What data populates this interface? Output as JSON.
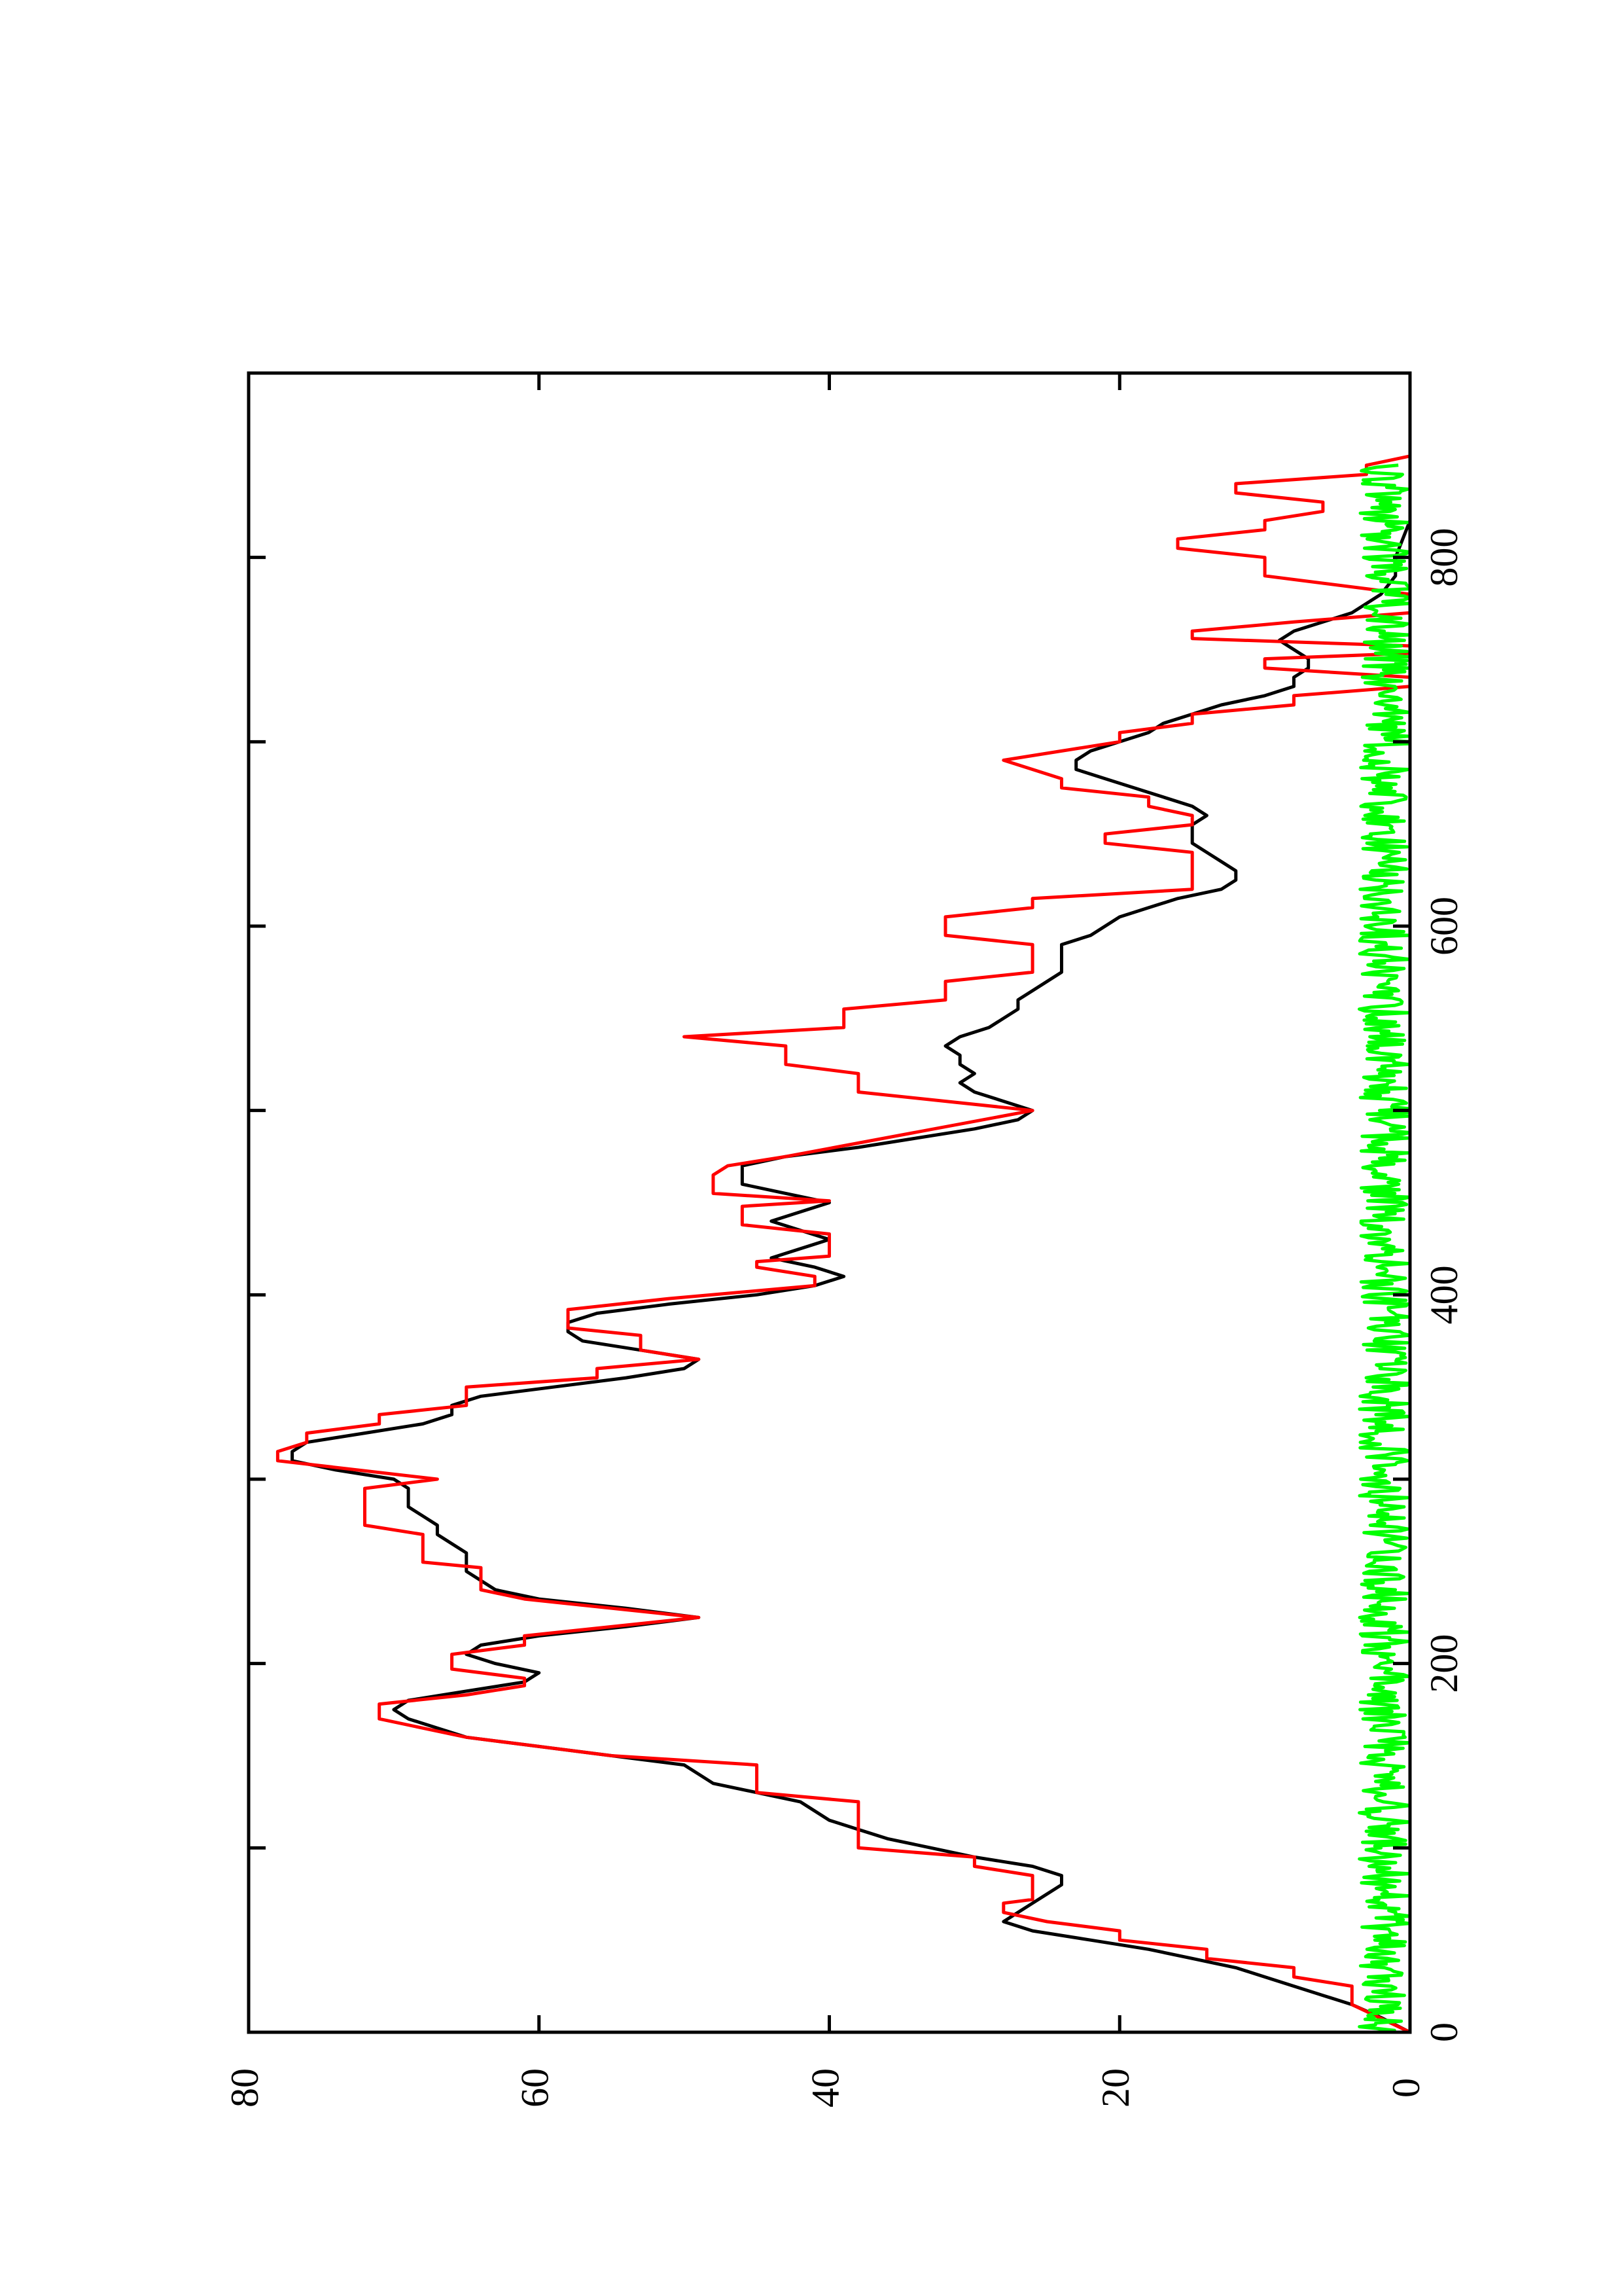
{
  "chart_data": {
    "type": "line",
    "orientation": "rotated-90-ccw",
    "title": "",
    "xlabel": "",
    "ylabel": "",
    "xlim": [
      0,
      900
    ],
    "ylim": [
      0,
      80
    ],
    "x_ticks": [
      0,
      200,
      400,
      600,
      800
    ],
    "x_tick_labels": [
      "0",
      "200",
      "400",
      "600",
      "800"
    ],
    "x_minor_ticks": [
      100,
      300,
      500,
      700
    ],
    "y_ticks": [
      0,
      20,
      40,
      60,
      80
    ],
    "y_tick_labels": [
      "0",
      "20",
      "40",
      "60",
      "80"
    ],
    "grid": false,
    "legend": "none",
    "colors": {
      "black_series": "#000000",
      "red_series": "#ff0000",
      "green_series": "#00ff00"
    },
    "series": [
      {
        "color": "#000000",
        "points": [
          [
            0,
            0
          ],
          [
            8,
            2
          ],
          [
            15,
            4
          ],
          [
            20,
            6
          ],
          [
            25,
            8
          ],
          [
            30,
            10
          ],
          [
            35,
            12
          ],
          [
            40,
            15
          ],
          [
            45,
            18
          ],
          [
            50,
            22
          ],
          [
            55,
            26
          ],
          [
            60,
            28
          ],
          [
            65,
            27
          ],
          [
            70,
            26
          ],
          [
            75,
            25
          ],
          [
            80,
            24
          ],
          [
            85,
            24
          ],
          [
            90,
            26
          ],
          [
            95,
            30
          ],
          [
            100,
            33
          ],
          [
            105,
            36
          ],
          [
            110,
            38
          ],
          [
            115,
            40
          ],
          [
            120,
            41
          ],
          [
            125,
            42
          ],
          [
            130,
            45
          ],
          [
            135,
            48
          ],
          [
            140,
            49
          ],
          [
            145,
            50
          ],
          [
            150,
            55
          ],
          [
            155,
            60
          ],
          [
            160,
            65
          ],
          [
            165,
            67
          ],
          [
            170,
            69
          ],
          [
            175,
            70
          ],
          [
            180,
            69
          ],
          [
            185,
            65
          ],
          [
            190,
            61
          ],
          [
            195,
            60
          ],
          [
            200,
            63
          ],
          [
            205,
            65
          ],
          [
            210,
            64
          ],
          [
            215,
            60
          ],
          [
            220,
            54
          ],
          [
            225,
            49
          ],
          [
            230,
            54
          ],
          [
            235,
            60
          ],
          [
            240,
            63
          ],
          [
            245,
            64
          ],
          [
            250,
            65
          ],
          [
            255,
            65
          ],
          [
            260,
            65
          ],
          [
            265,
            66
          ],
          [
            270,
            67
          ],
          [
            275,
            67
          ],
          [
            280,
            68
          ],
          [
            285,
            69
          ],
          [
            290,
            69
          ],
          [
            295,
            69
          ],
          [
            300,
            70
          ],
          [
            305,
            74
          ],
          [
            310,
            77
          ],
          [
            315,
            77
          ],
          [
            320,
            76
          ],
          [
            325,
            72
          ],
          [
            330,
            68
          ],
          [
            335,
            66
          ],
          [
            340,
            66
          ],
          [
            345,
            64
          ],
          [
            350,
            59
          ],
          [
            355,
            54
          ],
          [
            360,
            50
          ],
          [
            365,
            49
          ],
          [
            370,
            53
          ],
          [
            375,
            57
          ],
          [
            380,
            58
          ],
          [
            385,
            58
          ],
          [
            390,
            56
          ],
          [
            395,
            51
          ],
          [
            400,
            45
          ],
          [
            405,
            41
          ],
          [
            410,
            39
          ],
          [
            415,
            41
          ],
          [
            420,
            44
          ],
          [
            425,
            42
          ],
          [
            430,
            40
          ],
          [
            435,
            42
          ],
          [
            440,
            44
          ],
          [
            445,
            42
          ],
          [
            450,
            40
          ],
          [
            455,
            43
          ],
          [
            460,
            46
          ],
          [
            465,
            46
          ],
          [
            470,
            46
          ],
          [
            475,
            43
          ],
          [
            480,
            38
          ],
          [
            485,
            34
          ],
          [
            490,
            30
          ],
          [
            495,
            27
          ],
          [
            500,
            26
          ],
          [
            505,
            28
          ],
          [
            510,
            30
          ],
          [
            515,
            31
          ],
          [
            520,
            30
          ],
          [
            525,
            31
          ],
          [
            530,
            31
          ],
          [
            535,
            32
          ],
          [
            540,
            31
          ],
          [
            545,
            29
          ],
          [
            550,
            28
          ],
          [
            555,
            27
          ],
          [
            560,
            27
          ],
          [
            565,
            26
          ],
          [
            570,
            25
          ],
          [
            575,
            24
          ],
          [
            580,
            24
          ],
          [
            585,
            24
          ],
          [
            590,
            24
          ],
          [
            595,
            22
          ],
          [
            600,
            21
          ],
          [
            605,
            20
          ],
          [
            610,
            18
          ],
          [
            615,
            16
          ],
          [
            620,
            13
          ],
          [
            625,
            12
          ],
          [
            630,
            12
          ],
          [
            635,
            13
          ],
          [
            640,
            14
          ],
          [
            645,
            15
          ],
          [
            650,
            15
          ],
          [
            655,
            15
          ],
          [
            660,
            14
          ],
          [
            665,
            15
          ],
          [
            670,
            17
          ],
          [
            675,
            19
          ],
          [
            680,
            21
          ],
          [
            685,
            23
          ],
          [
            690,
            23
          ],
          [
            695,
            22
          ],
          [
            700,
            20
          ],
          [
            705,
            18
          ],
          [
            710,
            17
          ],
          [
            715,
            15
          ],
          [
            720,
            13
          ],
          [
            725,
            10
          ],
          [
            730,
            8
          ],
          [
            735,
            8
          ],
          [
            740,
            7
          ],
          [
            745,
            7
          ],
          [
            750,
            8
          ],
          [
            755,
            9
          ],
          [
            760,
            8
          ],
          [
            765,
            6
          ],
          [
            770,
            4
          ],
          [
            775,
            3
          ],
          [
            780,
            2
          ],
          [
            790,
            1
          ],
          [
            800,
            1
          ],
          [
            820,
            0
          ],
          [
            850,
            0
          ]
        ]
      },
      {
        "color": "#ff0000",
        "points": [
          [
            0,
            0
          ],
          [
            15,
            4
          ],
          [
            25,
            4
          ],
          [
            30,
            8
          ],
          [
            35,
            8
          ],
          [
            40,
            14
          ],
          [
            45,
            14
          ],
          [
            50,
            20
          ],
          [
            55,
            20
          ],
          [
            60,
            25
          ],
          [
            65,
            28
          ],
          [
            70,
            28
          ],
          [
            72,
            26
          ],
          [
            85,
            26
          ],
          [
            90,
            30
          ],
          [
            95,
            30
          ],
          [
            100,
            38
          ],
          [
            125,
            38
          ],
          [
            130,
            45
          ],
          [
            145,
            45
          ],
          [
            150,
            55
          ],
          [
            155,
            60
          ],
          [
            160,
            65
          ],
          [
            165,
            68
          ],
          [
            170,
            71
          ],
          [
            178,
            71
          ],
          [
            183,
            65
          ],
          [
            188,
            61
          ],
          [
            192,
            61
          ],
          [
            197,
            66
          ],
          [
            205,
            66
          ],
          [
            210,
            61
          ],
          [
            215,
            61
          ],
          [
            225,
            49
          ],
          [
            235,
            61
          ],
          [
            240,
            64
          ],
          [
            252,
            64
          ],
          [
            255,
            68
          ],
          [
            270,
            68
          ],
          [
            275,
            72
          ],
          [
            295,
            72
          ],
          [
            300,
            67
          ],
          [
            310,
            78
          ],
          [
            315,
            78
          ],
          [
            320,
            76
          ],
          [
            325,
            76
          ],
          [
            330,
            71
          ],
          [
            335,
            71
          ],
          [
            340,
            65
          ],
          [
            350,
            65
          ],
          [
            355,
            56
          ],
          [
            360,
            56
          ],
          [
            365,
            49
          ],
          [
            370,
            53
          ],
          [
            378,
            53
          ],
          [
            382,
            58
          ],
          [
            392,
            58
          ],
          [
            398,
            51
          ],
          [
            405,
            41
          ],
          [
            410,
            41
          ],
          [
            415,
            45
          ],
          [
            418,
            45
          ],
          [
            421,
            40
          ],
          [
            433,
            40
          ],
          [
            438,
            46
          ],
          [
            448,
            46
          ],
          [
            451,
            40
          ],
          [
            455,
            48
          ],
          [
            460,
            48
          ],
          [
            465,
            48
          ],
          [
            470,
            47
          ],
          [
            475,
            43
          ],
          [
            500,
            26
          ],
          [
            510,
            38
          ],
          [
            520,
            38
          ],
          [
            525,
            43
          ],
          [
            535,
            43
          ],
          [
            540,
            50
          ],
          [
            545,
            39
          ],
          [
            555,
            39
          ],
          [
            560,
            32
          ],
          [
            570,
            32
          ],
          [
            575,
            26
          ],
          [
            590,
            26
          ],
          [
            595,
            32
          ],
          [
            605,
            32
          ],
          [
            610,
            26
          ],
          [
            615,
            26
          ],
          [
            620,
            15
          ],
          [
            640,
            15
          ],
          [
            645,
            21
          ],
          [
            650,
            21
          ],
          [
            655,
            15
          ],
          [
            660,
            15
          ],
          [
            665,
            18
          ],
          [
            670,
            18
          ],
          [
            675,
            24
          ],
          [
            680,
            24
          ],
          [
            690,
            28
          ],
          [
            695,
            24
          ],
          [
            700,
            20
          ],
          [
            705,
            20
          ],
          [
            710,
            15
          ],
          [
            715,
            15
          ],
          [
            720,
            8
          ],
          [
            725,
            8
          ],
          [
            730,
            0
          ],
          [
            735,
            0
          ],
          [
            740,
            10
          ],
          [
            745,
            10
          ],
          [
            748,
            0
          ],
          [
            752,
            0
          ],
          [
            756,
            15
          ],
          [
            760,
            15
          ],
          [
            765,
            8
          ],
          [
            770,
            0
          ],
          [
            780,
            0
          ],
          [
            790,
            10
          ],
          [
            800,
            10
          ],
          [
            805,
            16
          ],
          [
            810,
            16
          ],
          [
            815,
            10
          ],
          [
            820,
            10
          ],
          [
            825,
            6
          ],
          [
            830,
            6
          ],
          [
            835,
            12
          ],
          [
            840,
            12
          ],
          [
            845,
            3
          ],
          [
            850,
            3
          ],
          [
            855,
            0
          ]
        ]
      },
      {
        "color": "#00ff00",
        "noise_amplitude": 3.5,
        "x_start": 0,
        "x_end": 850,
        "samples": 850
      }
    ]
  }
}
